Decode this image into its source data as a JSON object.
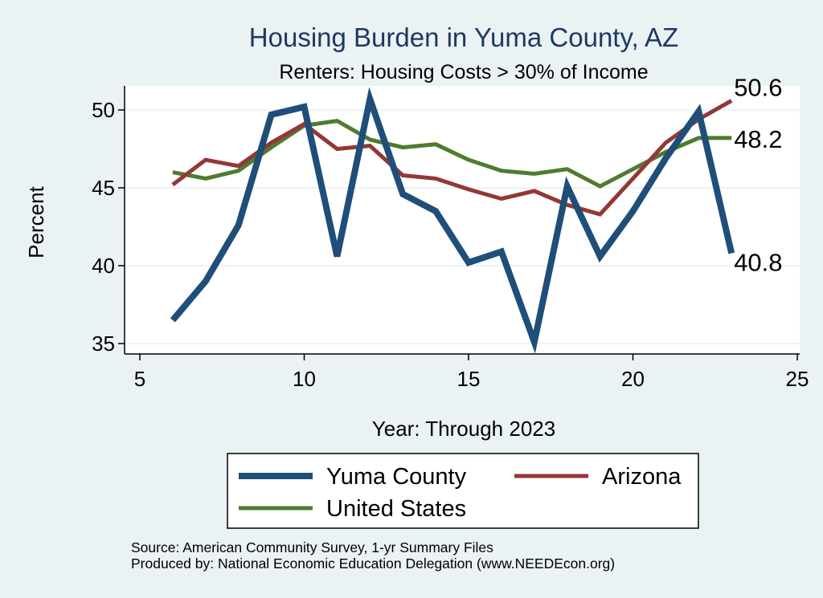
{
  "chart_data": {
    "type": "line",
    "title": "Housing Burden in Yuma County, AZ",
    "subtitle": "Renters: Housing Costs > 30% of Income",
    "xlabel": "Year: Through 2023",
    "ylabel": "Percent",
    "xlim": [
      5,
      25
    ],
    "ylim": [
      35,
      51.5
    ],
    "xticks": [
      5,
      10,
      15,
      20,
      25
    ],
    "yticks": [
      35,
      40,
      45,
      50
    ],
    "grid": true,
    "legend_position": "bottom",
    "series": [
      {
        "name": "Yuma County",
        "color": "#1f4e79",
        "x": [
          6,
          7,
          8,
          9,
          10,
          11,
          12,
          13,
          14,
          15,
          16,
          17,
          18,
          19,
          20,
          21,
          22,
          23
        ],
        "values": [
          36.5,
          39.0,
          42.6,
          49.7,
          50.2,
          40.6,
          50.7,
          44.6,
          43.5,
          40.2,
          40.9,
          35.1,
          45.1,
          40.6,
          43.5,
          46.9,
          49.9,
          40.8
        ],
        "end_label": "40.8"
      },
      {
        "name": "Arizona",
        "color": "#953735",
        "x": [
          6,
          7,
          8,
          9,
          10,
          11,
          12,
          13,
          14,
          15,
          16,
          17,
          18,
          19,
          20,
          21,
          22,
          23
        ],
        "values": [
          45.2,
          46.8,
          46.4,
          47.9,
          49.1,
          47.5,
          47.7,
          45.8,
          45.6,
          44.9,
          44.3,
          44.8,
          43.9,
          43.3,
          45.6,
          47.9,
          49.4,
          50.6
        ],
        "end_label": "50.6"
      },
      {
        "name": "United States",
        "color": "#4f7b2e",
        "x": [
          6,
          7,
          8,
          9,
          10,
          11,
          12,
          13,
          14,
          15,
          16,
          17,
          18,
          19,
          20,
          21,
          22,
          23
        ],
        "values": [
          46.0,
          45.6,
          46.1,
          47.6,
          49.0,
          49.3,
          48.1,
          47.6,
          47.8,
          46.8,
          46.1,
          45.9,
          46.2,
          45.1,
          46.2,
          47.3,
          48.2,
          48.2
        ],
        "end_label": "48.2"
      }
    ],
    "source_lines": [
      "Source: American Community Survey, 1-yr Summary Files",
      "Produced by: National Economic Education Delegation (www.NEEDEcon.org)"
    ]
  }
}
